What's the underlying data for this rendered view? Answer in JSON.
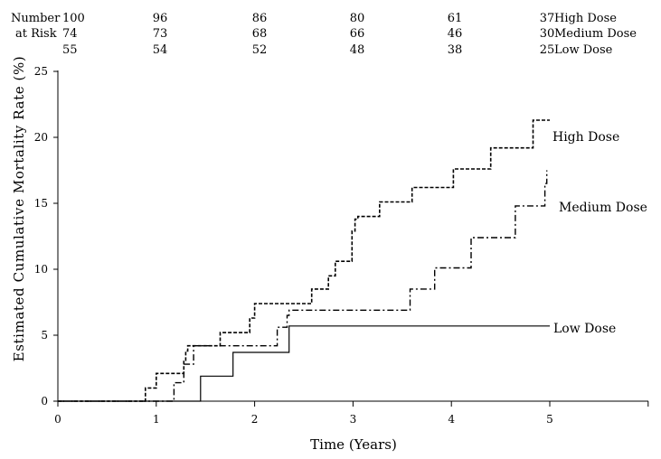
{
  "chart_data": {
    "type": "line",
    "step": true,
    "title": "",
    "xlabel": "Time (Years)",
    "ylabel": "Estimated Cumulative Mortality Rate (%)",
    "xlim": [
      0,
      6
    ],
    "ylim": [
      0,
      25
    ],
    "xticks": [
      "0",
      "1",
      "2",
      "3",
      "4",
      "5"
    ],
    "yticks": [
      "0",
      "5",
      "10",
      "15",
      "20",
      "25"
    ],
    "grid": false,
    "legend": "inline",
    "risk_table": {
      "label_line1": "Number",
      "label_line2": "at Risk",
      "rows": [
        {
          "group": "High Dose",
          "values": [
            "100",
            "96",
            "86",
            "80",
            "61",
            "37"
          ]
        },
        {
          "group": "Medium Dose",
          "values": [
            "74",
            "73",
            "68",
            "66",
            "46",
            "30"
          ]
        },
        {
          "group": "Low Dose",
          "values": [
            "55",
            "54",
            "52",
            "48",
            "38",
            "25"
          ]
        }
      ]
    },
    "series": [
      {
        "name": "High Dose",
        "style": "dashed",
        "x": [
          0,
          0.89,
          1.0,
          1.28,
          1.3,
          1.32,
          1.65,
          1.95,
          2.0,
          2.58,
          2.75,
          2.82,
          2.99,
          3.02,
          3.05,
          3.27,
          3.6,
          4.02,
          4.4,
          4.83,
          5.0
        ],
        "y": [
          0,
          1.0,
          2.1,
          3.1,
          3.8,
          4.2,
          5.2,
          6.3,
          7.4,
          8.5,
          9.5,
          10.6,
          12.9,
          13.8,
          14.0,
          15.1,
          16.2,
          17.6,
          19.2,
          21.3,
          21.3
        ]
      },
      {
        "name": "Medium Dose",
        "style": "dash-dot",
        "x": [
          0,
          1.18,
          1.28,
          1.38,
          2.23,
          2.33,
          2.35,
          3.58,
          3.83,
          4.2,
          4.65,
          4.95,
          4.97
        ],
        "y": [
          0,
          1.4,
          2.8,
          4.2,
          5.6,
          6.5,
          6.9,
          8.5,
          10.1,
          12.4,
          14.8,
          16.5,
          17.5
        ]
      },
      {
        "name": "Low Dose",
        "style": "solid",
        "x": [
          0,
          1.45,
          1.78,
          2.35,
          5.0
        ],
        "y": [
          0,
          1.9,
          3.7,
          5.7,
          5.7
        ]
      }
    ],
    "series_labels": [
      "High Dose",
      "Medium Dose",
      "Low Dose"
    ]
  }
}
